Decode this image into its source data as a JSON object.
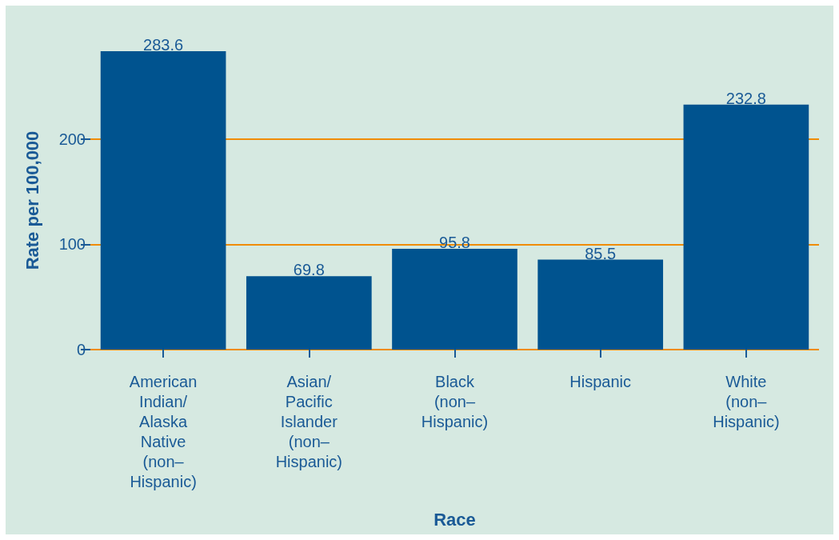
{
  "chart_data": {
    "type": "bar",
    "xlabel": "Race",
    "ylabel": "Rate per 100,000",
    "categories": [
      "American Indian/Alaska Native (non–Hispanic)",
      "Asian/Pacific Islander (non–Hispanic)",
      "Black (non–Hispanic)",
      "Hispanic",
      "White (non–Hispanic)"
    ],
    "values": [
      283.6,
      69.8,
      95.8,
      85.5,
      232.8
    ],
    "color": "#00538f",
    "ylim": [
      0,
      283.6
    ],
    "yticks": [
      0,
      100,
      200
    ],
    "grid": "y",
    "data_labels": true
  }
}
